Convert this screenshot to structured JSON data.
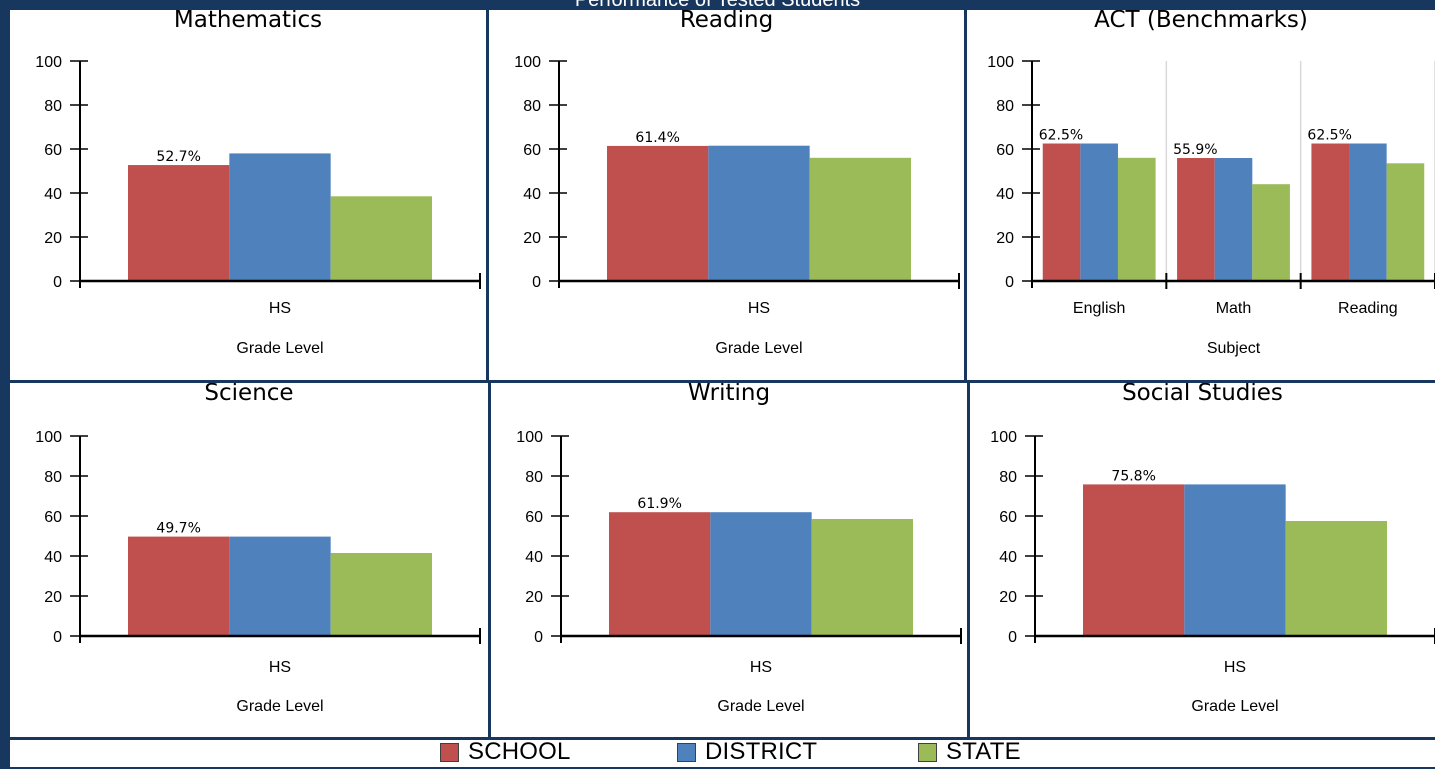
{
  "header": {
    "title": "Performance of Tested Students"
  },
  "colors": {
    "frame": "#17375e",
    "school": "#c0504d",
    "district": "#4f81bd",
    "state": "#9bbb59"
  },
  "legend": {
    "items": [
      {
        "label": "SCHOOL",
        "color": "#c0504d"
      },
      {
        "label": "DISTRICT",
        "color": "#4f81bd"
      },
      {
        "label": "STATE",
        "color": "#9bbb59"
      }
    ]
  },
  "chart_data": [
    {
      "type": "bar",
      "title": "Mathematics",
      "xlabel": "Grade Level",
      "ylabel": "",
      "ylim": [
        0,
        100
      ],
      "yticks": [
        0,
        20,
        40,
        60,
        80,
        100
      ],
      "grid": false,
      "categories": [
        "HS"
      ],
      "series": [
        {
          "name": "SCHOOL",
          "values": [
            52.7
          ],
          "data_labels": [
            "52.7%"
          ]
        },
        {
          "name": "DISTRICT",
          "values": [
            58
          ]
        },
        {
          "name": "STATE",
          "values": [
            38.5
          ]
        }
      ]
    },
    {
      "type": "bar",
      "title": "Reading",
      "xlabel": "Grade Level",
      "ylabel": "",
      "ylim": [
        0,
        100
      ],
      "yticks": [
        0,
        20,
        40,
        60,
        80,
        100
      ],
      "grid": false,
      "categories": [
        "HS"
      ],
      "series": [
        {
          "name": "SCHOOL",
          "values": [
            61.4
          ],
          "data_labels": [
            "61.4%"
          ]
        },
        {
          "name": "DISTRICT",
          "values": [
            61.5
          ]
        },
        {
          "name": "STATE",
          "values": [
            56
          ]
        }
      ]
    },
    {
      "type": "bar",
      "title": "ACT (Benchmarks)",
      "xlabel": "Subject",
      "ylabel": "",
      "ylim": [
        0,
        100
      ],
      "yticks": [
        0,
        20,
        40,
        60,
        80,
        100
      ],
      "grid": true,
      "categories": [
        "English",
        "Math",
        "Reading"
      ],
      "series": [
        {
          "name": "SCHOOL",
          "values": [
            62.5,
            55.9,
            62.5
          ],
          "data_labels": [
            "62.5%",
            "55.9%",
            "62.5%"
          ]
        },
        {
          "name": "DISTRICT",
          "values": [
            62.5,
            55.9,
            62.5
          ]
        },
        {
          "name": "STATE",
          "values": [
            56,
            44,
            53.5
          ]
        }
      ]
    },
    {
      "type": "bar",
      "title": "Science",
      "xlabel": "Grade Level",
      "ylabel": "",
      "ylim": [
        0,
        100
      ],
      "yticks": [
        0,
        20,
        40,
        60,
        80,
        100
      ],
      "grid": false,
      "categories": [
        "HS"
      ],
      "series": [
        {
          "name": "SCHOOL",
          "values": [
            49.7
          ],
          "data_labels": [
            "49.7%"
          ]
        },
        {
          "name": "DISTRICT",
          "values": [
            49.7
          ]
        },
        {
          "name": "STATE",
          "values": [
            41.5
          ]
        }
      ]
    },
    {
      "type": "bar",
      "title": "Writing",
      "xlabel": "Grade Level",
      "ylabel": "",
      "ylim": [
        0,
        100
      ],
      "yticks": [
        0,
        20,
        40,
        60,
        80,
        100
      ],
      "grid": false,
      "categories": [
        "HS"
      ],
      "series": [
        {
          "name": "SCHOOL",
          "values": [
            61.9
          ],
          "data_labels": [
            "61.9%"
          ]
        },
        {
          "name": "DISTRICT",
          "values": [
            61.9
          ]
        },
        {
          "name": "STATE",
          "values": [
            58.5
          ]
        }
      ]
    },
    {
      "type": "bar",
      "title": "Social Studies",
      "xlabel": "Grade Level",
      "ylabel": "",
      "ylim": [
        0,
        100
      ],
      "yticks": [
        0,
        20,
        40,
        60,
        80,
        100
      ],
      "grid": false,
      "categories": [
        "HS"
      ],
      "series": [
        {
          "name": "SCHOOL",
          "values": [
            75.8
          ],
          "data_labels": [
            "75.8%"
          ]
        },
        {
          "name": "DISTRICT",
          "values": [
            75.8
          ]
        },
        {
          "name": "STATE",
          "values": [
            57.5
          ]
        }
      ]
    }
  ]
}
